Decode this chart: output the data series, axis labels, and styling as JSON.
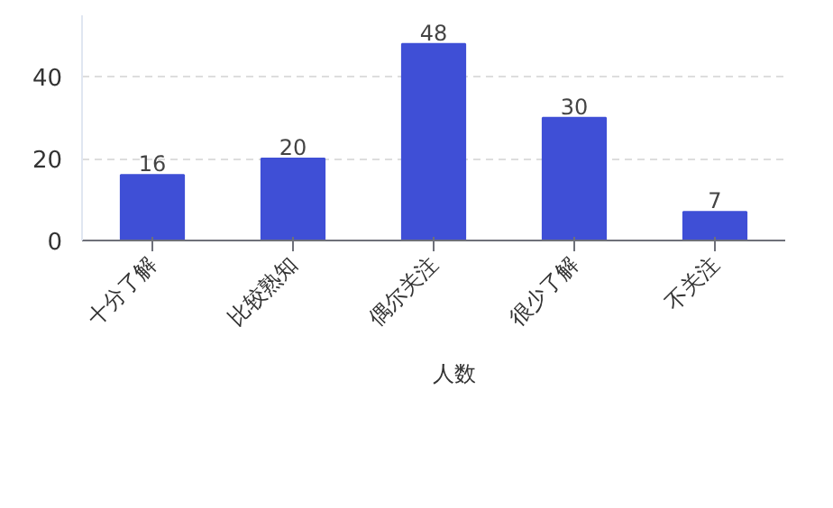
{
  "chart_data": {
    "type": "bar",
    "categories": [
      "十分了解",
      "比较熟知",
      "偶尔关注",
      "很少了解",
      "不关注"
    ],
    "series": [
      {
        "name": "人数",
        "color": "#3f4fd6",
        "values": [
          16,
          20,
          48,
          30,
          7
        ]
      }
    ],
    "ylim": [
      0,
      55
    ],
    "yticks": [
      0,
      20,
      40
    ],
    "grid": "y",
    "legend": "bottom",
    "data_labels": true
  }
}
